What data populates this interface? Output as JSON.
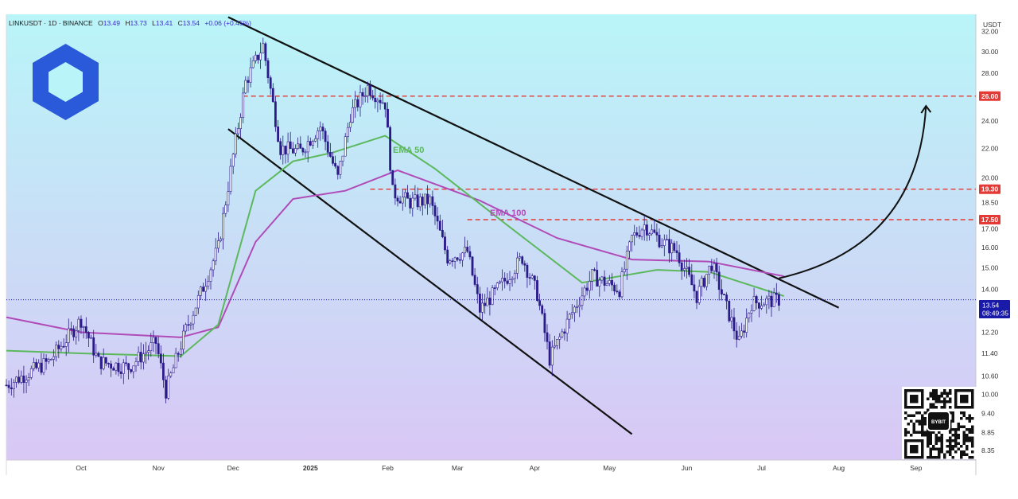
{
  "header": {
    "symbol": "LINKUSDT",
    "interval": "1D",
    "exchange": "BINANCE",
    "open_label": "O",
    "open": "13.49",
    "high_label": "H",
    "high": "13.73",
    "low_label": "L",
    "low": "13.41",
    "close_label": "C",
    "close": "13.54",
    "change": "+0.06 (+0.45%)"
  },
  "currency": "USDT",
  "price_ticks": [
    "32.00",
    "30.00",
    "28.00",
    "26.00",
    "24.00",
    "22.00",
    "20.00",
    "18.50",
    "17.00",
    "16.00",
    "15.00",
    "14.00",
    "12.20",
    "11.40",
    "10.60",
    "10.00",
    "9.40",
    "8.85",
    "8.35"
  ],
  "time_ticks": [
    "Oct",
    "Nov",
    "Dec",
    "2025",
    "Feb",
    "Mar",
    "Apr",
    "May",
    "Jun",
    "Jul",
    "Aug",
    "Sep"
  ],
  "price_badges": [
    {
      "value": "26.00",
      "color": "#e53935"
    },
    {
      "value": "19.30",
      "color": "#e53935"
    },
    {
      "value": "17.50",
      "color": "#e53935"
    }
  ],
  "last_price": {
    "value": "13.54",
    "countdown": "08:49:35",
    "color": "#1a1aa8"
  },
  "ema_labels": {
    "ema50": "EMA 50",
    "ema100": "EMA 100"
  },
  "qr_caption": "BYBIT",
  "colors": {
    "bg_top": "#b9f5f8",
    "bg_bottom": "#d9c7f5",
    "candle": "#2a1a8a",
    "ema50": "#5cb85c",
    "ema100": "#b04bb8",
    "trend": "#111111",
    "level": "#e53935",
    "logo": "#2a5ada"
  },
  "chart_data": {
    "type": "candlestick",
    "title": "LINKUSDT · 1D · BINANCE",
    "ylabel": "USDT",
    "ylim": [
      8.1,
      33.8
    ],
    "y_scale": "log",
    "x_range": [
      "2024-09-01",
      "2025-09-25"
    ],
    "horizontal_levels": [
      26.0,
      19.3,
      17.5
    ],
    "trendlines": [
      {
        "name": "upper",
        "from": [
          "2024-11-29",
          33.5
        ],
        "to": [
          "2025-08-01",
          13.2
        ]
      },
      {
        "name": "lower",
        "from": [
          "2024-11-29",
          23.4
        ],
        "to": [
          "2025-05-10",
          8.8
        ]
      }
    ],
    "projection_arrow": {
      "from": [
        "2025-07-08",
        14.5
      ],
      "to": [
        "2025-09-05",
        25.2
      ]
    },
    "anchors": [
      [
        "2024-09-01",
        10.3
      ],
      [
        "2024-09-18",
        11.1
      ],
      [
        "2024-10-01",
        12.7
      ],
      [
        "2024-10-08",
        11.1
      ],
      [
        "2024-10-20",
        10.9
      ],
      [
        "2024-10-31",
        11.8
      ],
      [
        "2024-11-04",
        10.1
      ],
      [
        "2024-11-12",
        12.3
      ],
      [
        "2024-11-19",
        14.1
      ],
      [
        "2024-11-25",
        16.0
      ],
      [
        "2024-12-01",
        21.5
      ],
      [
        "2024-12-06",
        27.2
      ],
      [
        "2024-12-13",
        30.6
      ],
      [
        "2024-12-20",
        22.0
      ],
      [
        "2024-12-28",
        21.8
      ],
      [
        "2025-01-05",
        23.6
      ],
      [
        "2025-01-12",
        20.0
      ],
      [
        "2025-01-17",
        24.5
      ],
      [
        "2025-01-24",
        26.8
      ],
      [
        "2025-01-31",
        25.4
      ],
      [
        "2025-02-03",
        19.1
      ],
      [
        "2025-02-10",
        18.5
      ],
      [
        "2025-02-18",
        18.6
      ],
      [
        "2025-02-25",
        15.5
      ],
      [
        "2025-03-05",
        15.8
      ],
      [
        "2025-03-10",
        13.1
      ],
      [
        "2025-03-20",
        14.4
      ],
      [
        "2025-03-27",
        15.5
      ],
      [
        "2025-04-02",
        13.8
      ],
      [
        "2025-04-07",
        11.2
      ],
      [
        "2025-04-15",
        12.8
      ],
      [
        "2025-04-24",
        14.6
      ],
      [
        "2025-05-05",
        14.0
      ],
      [
        "2025-05-10",
        16.5
      ],
      [
        "2025-05-15",
        17.2
      ],
      [
        "2025-05-22",
        16.3
      ],
      [
        "2025-05-28",
        15.8
      ],
      [
        "2025-06-05",
        13.7
      ],
      [
        "2025-06-11",
        15.2
      ],
      [
        "2025-06-17",
        13.2
      ],
      [
        "2025-06-22",
        11.8
      ],
      [
        "2025-06-27",
        13.4
      ],
      [
        "2025-07-08",
        13.54
      ]
    ],
    "ema50": [
      [
        "2024-09-01",
        11.5
      ],
      [
        "2024-10-01",
        11.4
      ],
      [
        "2024-11-10",
        11.3
      ],
      [
        "2024-11-25",
        12.5
      ],
      [
        "2024-12-10",
        19.2
      ],
      [
        "2024-12-25",
        21.1
      ],
      [
        "2025-01-10",
        21.7
      ],
      [
        "2025-01-31",
        22.9
      ],
      [
        "2025-02-20",
        20.6
      ],
      [
        "2025-03-20",
        17.3
      ],
      [
        "2025-04-20",
        14.3
      ],
      [
        "2025-05-20",
        14.9
      ],
      [
        "2025-06-10",
        14.8
      ],
      [
        "2025-07-10",
        13.7
      ]
    ],
    "ema100": [
      [
        "2024-09-01",
        12.8
      ],
      [
        "2024-10-01",
        12.2
      ],
      [
        "2024-11-10",
        12.0
      ],
      [
        "2024-11-25",
        12.4
      ],
      [
        "2024-12-10",
        16.3
      ],
      [
        "2024-12-25",
        18.7
      ],
      [
        "2025-01-15",
        19.2
      ],
      [
        "2025-02-05",
        20.5
      ],
      [
        "2025-03-10",
        18.6
      ],
      [
        "2025-04-10",
        16.5
      ],
      [
        "2025-05-10",
        15.4
      ],
      [
        "2025-06-10",
        15.3
      ],
      [
        "2025-07-10",
        14.6
      ]
    ]
  }
}
